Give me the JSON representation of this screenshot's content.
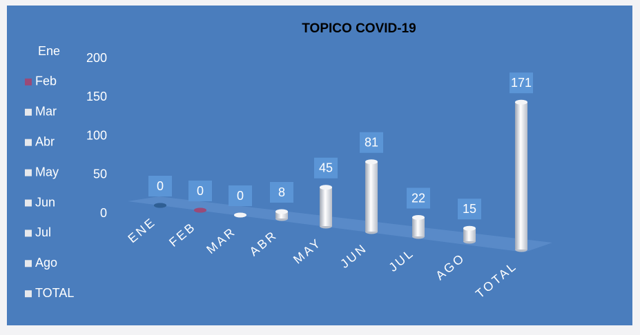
{
  "chart_data": {
    "type": "bar3d",
    "title": "TOPICO COVID-19",
    "categories": [
      "ENE",
      "FEB",
      "MAR",
      "ABR",
      "MAY",
      "JUN",
      "JUL",
      "AGO",
      "TOTAL"
    ],
    "values": [
      0,
      0,
      0,
      8,
      45,
      81,
      22,
      15,
      171
    ],
    "legend": [
      "Ene",
      "Feb",
      "Mar",
      "Abr",
      "May",
      "Jun",
      "Jul",
      "Ago",
      "TOTAL"
    ],
    "colors": [
      "#2f5f94",
      "#9a4a78",
      "#e6e8ec",
      "#e6e8ec",
      "#e6e8ec",
      "#e6e8ec",
      "#e6e8ec",
      "#e6e8ec",
      "#e6e8ec"
    ],
    "ylim": [
      0,
      200
    ],
    "yticks": [
      0,
      50,
      100,
      150,
      200
    ]
  }
}
